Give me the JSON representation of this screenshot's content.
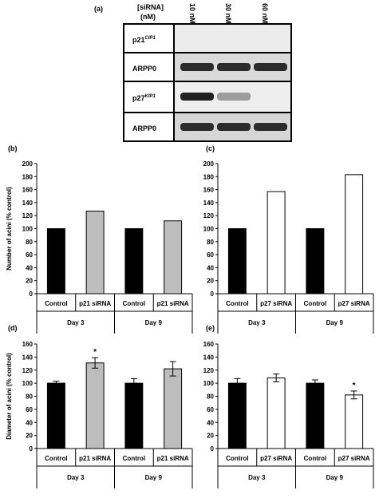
{
  "panel_a": {
    "label": "(a)",
    "header": {
      "line1": "[siRNA]",
      "line2": "(nM)"
    },
    "concentrations": [
      "10 nM",
      "30 nM",
      "60 nM"
    ],
    "rows": [
      {
        "label": "p21",
        "sup": "CIP1",
        "bands": [
          0.0,
          0.0,
          0.0
        ]
      },
      {
        "label": "ARPP0",
        "sup": "",
        "bands": [
          0.9,
          0.9,
          0.9
        ]
      },
      {
        "label": "p27",
        "sup": "KIP1",
        "bands": [
          0.95,
          0.25,
          0.0
        ]
      },
      {
        "label": "ARPP0",
        "sup": "",
        "bands": [
          0.9,
          0.9,
          0.9
        ]
      }
    ]
  },
  "chart_data": [
    {
      "panel": "(b)",
      "type": "bar",
      "ylabel": "Number of acini (% control)",
      "ylim": [
        0,
        200
      ],
      "yticks": [
        0,
        20,
        40,
        60,
        80,
        100,
        120,
        140,
        160,
        180,
        200
      ],
      "categories": [
        "Control",
        "p21 siRNA",
        "Control",
        "p21 siRNA"
      ],
      "groups": [
        "Day 3",
        "Day 9"
      ],
      "values": [
        100,
        127,
        100,
        112
      ],
      "errors": [
        0,
        0,
        0,
        0
      ],
      "significant": [
        false,
        false,
        false,
        false
      ],
      "colors": [
        "#000000",
        "#bdbdbd",
        "#000000",
        "#bdbdbd"
      ]
    },
    {
      "panel": "(c)",
      "type": "bar",
      "ylabel": "",
      "ylim": [
        0,
        200
      ],
      "yticks": [
        0,
        20,
        40,
        60,
        80,
        100,
        120,
        140,
        160,
        180,
        200
      ],
      "categories": [
        "Control",
        "p27 siRNA",
        "Control",
        "p27 siRNA"
      ],
      "groups": [
        "Day 3",
        "Day 9"
      ],
      "values": [
        100,
        157,
        100,
        183
      ],
      "errors": [
        0,
        0,
        0,
        0
      ],
      "significant": [
        false,
        false,
        false,
        false
      ],
      "colors": [
        "#000000",
        "#ffffff",
        "#000000",
        "#ffffff"
      ]
    },
    {
      "panel": "(d)",
      "type": "bar",
      "ylabel": "Diameter of acini (% control)",
      "ylim": [
        0,
        160
      ],
      "yticks": [
        0,
        20,
        40,
        60,
        80,
        100,
        120,
        140,
        160
      ],
      "categories": [
        "Control",
        "p21 siRNA",
        "Control",
        "p21 siRNA"
      ],
      "groups": [
        "Day 3",
        "Day 9"
      ],
      "values": [
        100,
        131,
        100,
        122
      ],
      "errors": [
        3,
        8,
        7,
        11
      ],
      "significant": [
        false,
        true,
        false,
        false
      ],
      "colors": [
        "#000000",
        "#bdbdbd",
        "#000000",
        "#bdbdbd"
      ]
    },
    {
      "panel": "(e)",
      "type": "bar",
      "ylabel": "",
      "ylim": [
        0,
        160
      ],
      "yticks": [
        0,
        20,
        40,
        60,
        80,
        100,
        120,
        140,
        160
      ],
      "categories": [
        "Control",
        "p27 siRNA",
        "Control",
        "p27 siRNA"
      ],
      "groups": [
        "Day 3",
        "Day 9"
      ],
      "values": [
        100,
        108,
        100,
        82
      ],
      "errors": [
        7,
        6,
        5,
        6
      ],
      "significant": [
        false,
        false,
        false,
        true
      ],
      "colors": [
        "#000000",
        "#ffffff",
        "#000000",
        "#ffffff"
      ]
    }
  ],
  "significance_marker": "*"
}
